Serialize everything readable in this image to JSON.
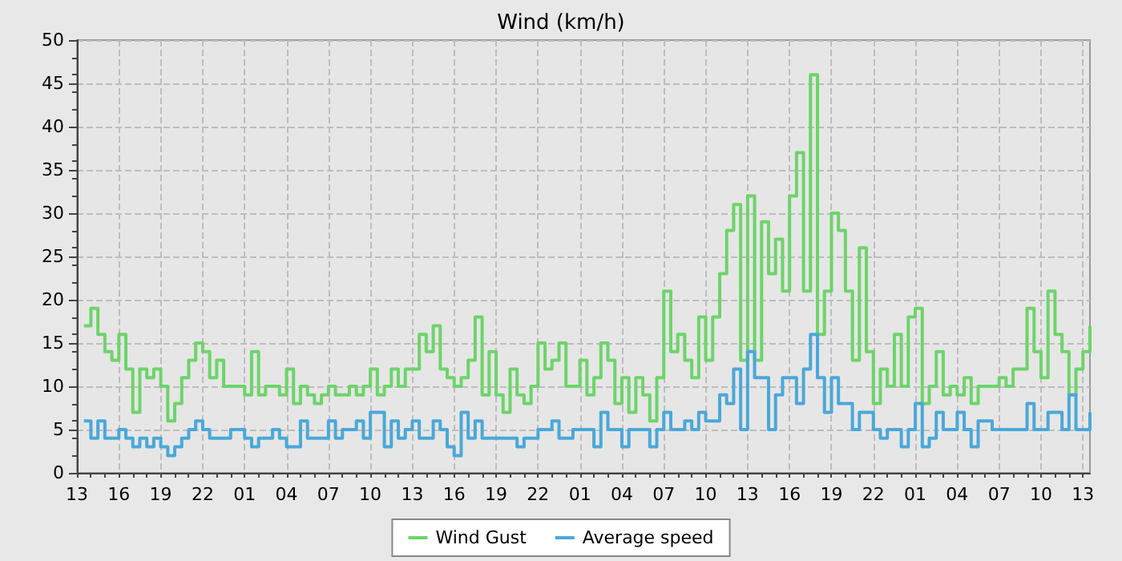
{
  "chart_data": {
    "type": "step",
    "title": "Wind (km/h)",
    "categories": [
      "13",
      null,
      null,
      null,
      null,
      null,
      "16",
      null,
      null,
      null,
      null,
      null,
      "19",
      null,
      null,
      null,
      null,
      null,
      "22",
      null,
      null,
      null,
      null,
      null,
      "01",
      null,
      null,
      null,
      null,
      null,
      "04",
      null,
      null,
      null,
      null,
      null,
      "07",
      null,
      null,
      null,
      null,
      null,
      "10",
      null,
      null,
      null,
      null,
      null,
      "13",
      null,
      null,
      null,
      null,
      null,
      "16",
      null,
      null,
      null,
      null,
      null,
      "19",
      null,
      null,
      null,
      null,
      null,
      "22",
      null,
      null,
      null,
      null,
      null,
      "01",
      null,
      null,
      null,
      null,
      null,
      "04",
      null,
      null,
      null,
      null,
      null,
      "07",
      null,
      null,
      null,
      null,
      null,
      "10",
      null,
      null,
      null,
      null,
      null,
      "13",
      null,
      null,
      null,
      null,
      null,
      "16",
      null,
      null,
      null,
      null,
      null,
      "19",
      null,
      null,
      null,
      null,
      null,
      "22",
      null,
      null,
      null,
      null,
      null,
      "01",
      null,
      null,
      null,
      null,
      null,
      "04",
      null,
      null,
      null,
      null,
      null,
      "07",
      null,
      null,
      null,
      null,
      null,
      "10",
      null,
      null,
      null,
      null,
      null,
      "13",
      null
    ],
    "ylim": [
      0,
      50
    ],
    "yticks": [
      0,
      5,
      10,
      15,
      20,
      25,
      30,
      35,
      40,
      45,
      50
    ],
    "grid": true,
    "legend": "bottom",
    "series": [
      {
        "name": "Wind Gust",
        "color": "#6dd46a",
        "values": [
          null,
          17,
          19,
          16,
          14,
          13,
          16,
          12,
          7,
          12,
          11,
          12,
          10,
          6,
          8,
          11,
          13,
          15,
          14,
          11,
          13,
          10,
          10,
          10,
          9,
          14,
          9,
          10,
          10,
          9,
          12,
          8,
          10,
          9,
          8,
          9,
          10,
          9,
          9,
          10,
          9,
          10,
          12,
          9,
          10,
          12,
          10,
          12,
          12,
          16,
          14,
          17,
          12,
          11,
          10,
          11,
          13,
          18,
          9,
          14,
          9,
          7,
          12,
          9,
          8,
          10,
          15,
          12,
          13,
          15,
          10,
          10,
          13,
          9,
          11,
          15,
          13,
          8,
          11,
          7,
          11,
          9,
          6,
          11,
          21,
          14,
          16,
          13,
          11,
          18,
          13,
          18,
          23,
          28,
          31,
          13,
          32,
          13,
          29,
          23,
          27,
          21,
          32,
          37,
          21,
          46,
          16,
          21,
          30,
          28,
          21,
          13,
          26,
          14,
          8,
          12,
          10,
          16,
          10,
          18,
          19,
          8,
          10,
          14,
          9,
          10,
          9,
          11,
          8,
          10,
          10,
          10,
          11,
          10,
          12,
          12,
          19,
          14,
          11,
          21,
          16,
          14,
          9,
          12,
          14,
          17
        ]
      },
      {
        "name": "Average speed",
        "color": "#4aa8d8",
        "values": [
          null,
          6,
          4,
          6,
          4,
          4,
          5,
          4,
          3,
          4,
          3,
          4,
          3,
          2,
          3,
          4,
          5,
          6,
          5,
          4,
          4,
          4,
          5,
          5,
          4,
          3,
          4,
          4,
          5,
          4,
          3,
          3,
          6,
          4,
          4,
          4,
          6,
          4,
          5,
          5,
          6,
          4,
          7,
          7,
          3,
          6,
          4,
          5,
          6,
          4,
          4,
          6,
          5,
          3,
          2,
          7,
          4,
          6,
          4,
          4,
          4,
          4,
          4,
          3,
          4,
          4,
          5,
          5,
          6,
          4,
          4,
          5,
          5,
          5,
          3,
          7,
          5,
          5,
          3,
          5,
          5,
          5,
          3,
          5,
          7,
          5,
          5,
          6,
          5,
          7,
          6,
          6,
          9,
          8,
          12,
          5,
          14,
          11,
          11,
          5,
          9,
          11,
          11,
          8,
          12,
          16,
          11,
          7,
          11,
          8,
          8,
          5,
          7,
          7,
          5,
          4,
          5,
          5,
          3,
          5,
          8,
          3,
          4,
          7,
          5,
          5,
          7,
          5,
          3,
          6,
          6,
          5,
          5,
          5,
          5,
          5,
          8,
          5,
          5,
          7,
          7,
          5,
          9,
          5,
          5,
          7
        ]
      }
    ]
  }
}
